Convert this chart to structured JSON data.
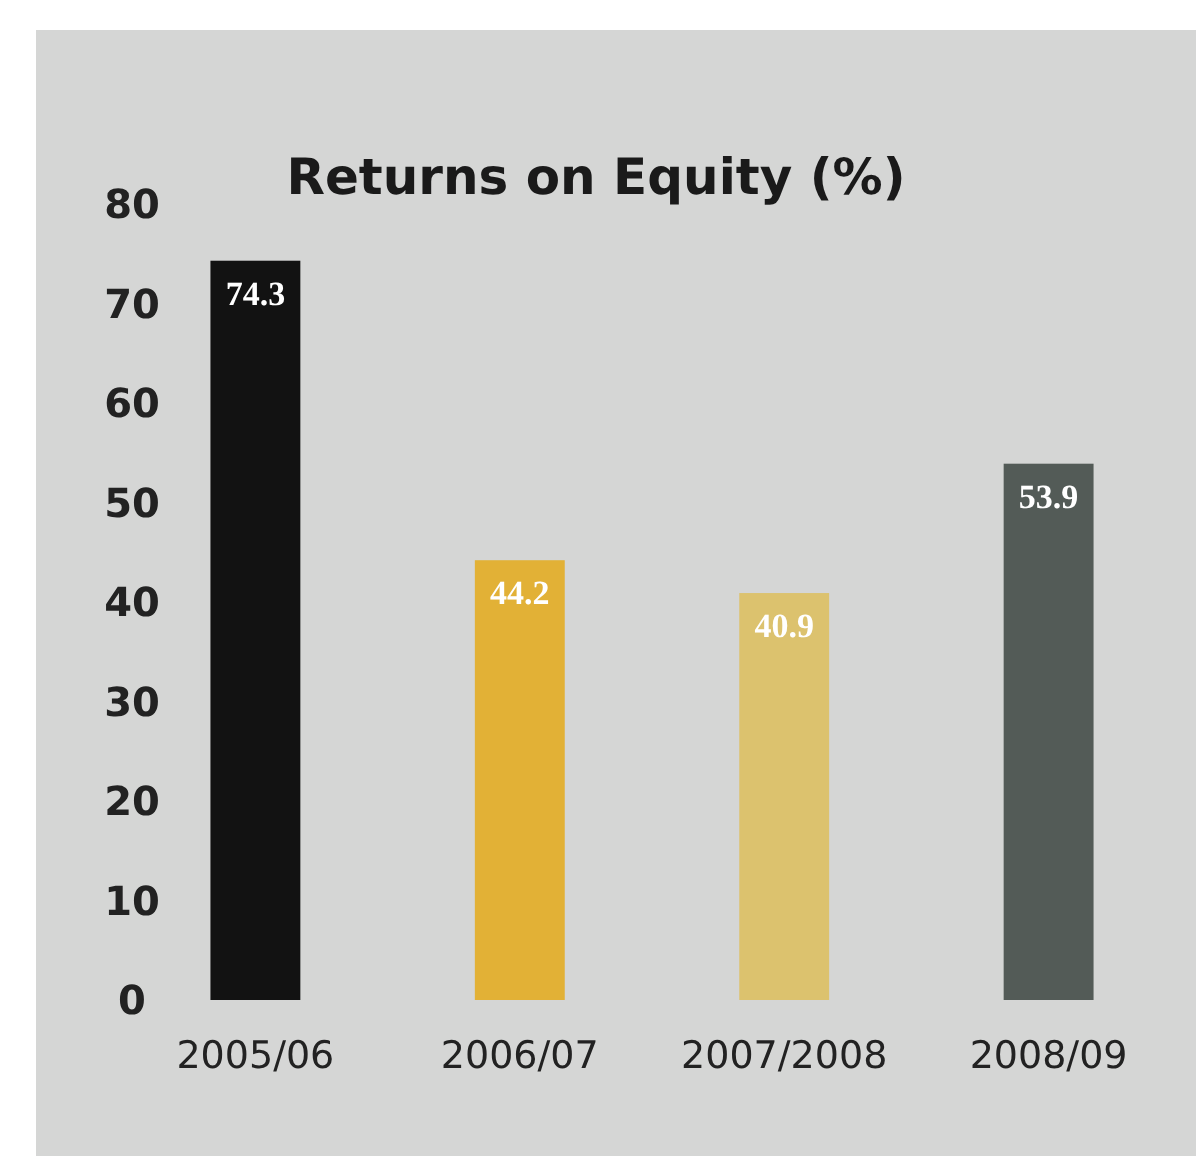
{
  "chart_data": {
    "type": "bar",
    "title": "Returns on Equity (%)",
    "categories": [
      "2005/06",
      "2006/07",
      "2007/2008",
      "2008/09"
    ],
    "values": [
      74.3,
      44.2,
      40.9,
      53.9
    ],
    "colors": [
      "#121212",
      "#e2b136",
      "#dcc26e",
      "#535b57"
    ],
    "ylim": [
      0,
      80
    ],
    "yticks": [
      0,
      10,
      20,
      30,
      40,
      50,
      60,
      70,
      80
    ],
    "data_labels": true,
    "grid": false
  }
}
